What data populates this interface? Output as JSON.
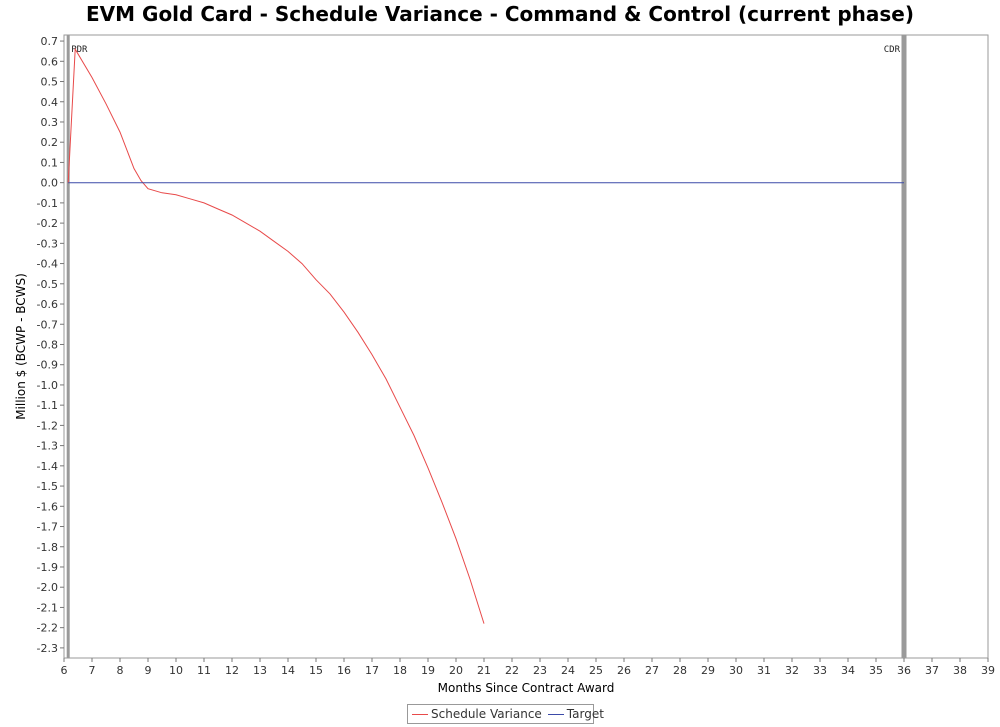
{
  "chart_data": {
    "type": "line",
    "title": "EVM Gold Card - Schedule Variance - Command & Control (current phase)",
    "xlabel": "Months Since Contract Award",
    "ylabel": "Million $ (BCWP - BCWS)",
    "xlim": [
      6,
      39
    ],
    "ylim": [
      -2.35,
      0.73
    ],
    "x_ticks": [
      6,
      7,
      8,
      9,
      10,
      11,
      12,
      13,
      14,
      15,
      16,
      17,
      18,
      19,
      20,
      21,
      22,
      23,
      24,
      25,
      26,
      27,
      28,
      29,
      30,
      31,
      32,
      33,
      34,
      35,
      36,
      37,
      38,
      39
    ],
    "y_ticks": [
      "0.7",
      "0.6",
      "0.5",
      "0.4",
      "0.3",
      "0.2",
      "0.1",
      "0.0",
      "-0.1",
      "-0.2",
      "-0.3",
      "-0.4",
      "-0.5",
      "-0.6",
      "-0.7",
      "-0.8",
      "-0.9",
      "-1.0",
      "-1.1",
      "-1.2",
      "-1.3",
      "-1.4",
      "-1.5",
      "-1.6",
      "-1.7",
      "-1.8",
      "-1.9",
      "-2.0",
      "-2.1",
      "-2.2",
      "-2.3"
    ],
    "grid": false,
    "legend_position": "bottom-center",
    "series": [
      {
        "name": "Schedule Variance",
        "color": "#e84a4a",
        "x": [
          6.15,
          6.4,
          7.0,
          7.5,
          8.0,
          8.5,
          8.75,
          9.0,
          9.5,
          10.0,
          10.5,
          11.0,
          11.5,
          12.0,
          12.5,
          13.0,
          13.5,
          14.0,
          14.5,
          15.0,
          15.5,
          16.0,
          16.5,
          17.0,
          17.5,
          18.0,
          18.5,
          19.0,
          19.5,
          20.0,
          20.5,
          21.0
        ],
        "y": [
          0.0,
          0.66,
          0.52,
          0.39,
          0.25,
          0.07,
          0.01,
          -0.03,
          -0.05,
          -0.06,
          -0.08,
          -0.1,
          -0.13,
          -0.16,
          -0.2,
          -0.24,
          -0.29,
          -0.34,
          -0.4,
          -0.48,
          -0.55,
          -0.64,
          -0.74,
          -0.85,
          -0.97,
          -1.11,
          -1.25,
          -1.41,
          -1.58,
          -1.76,
          -1.96,
          -2.18
        ]
      },
      {
        "name": "Target",
        "color": "#3b4aa8",
        "x": [
          6.15,
          36.0
        ],
        "y": [
          0.0,
          0.0
        ]
      }
    ],
    "milestones": [
      {
        "label": "PDR",
        "x": 6.15
      },
      {
        "label": "CDR",
        "x": 36.0
      }
    ]
  },
  "legend": {
    "items": [
      {
        "label": "Schedule Variance",
        "color": "#e84a4a"
      },
      {
        "label": "Target",
        "color": "#3b4aa8"
      }
    ]
  }
}
